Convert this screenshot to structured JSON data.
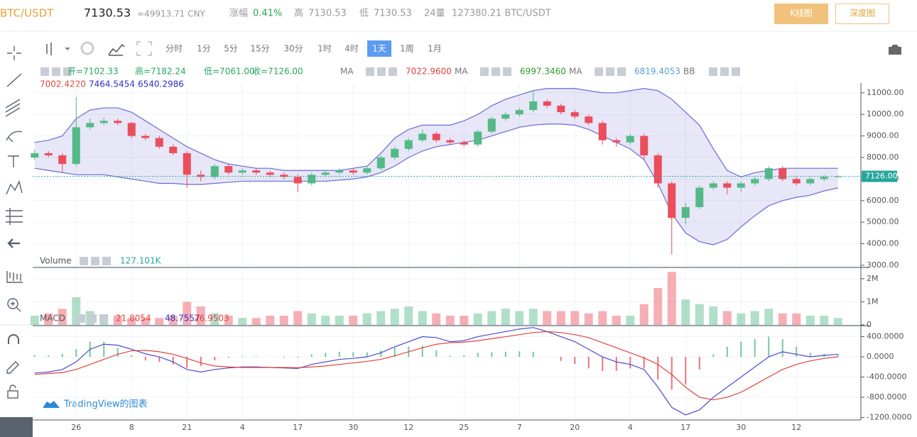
{
  "header": {
    "pair": "BTC/USDT",
    "price": "7130.53",
    "cny": "≈49913.71 CNY",
    "change_label": "涨幅",
    "change": "0.41%",
    "high_label": "高",
    "high": "7130.53",
    "low_label": "低",
    "low": "7130.53",
    "vol_label": "24量",
    "vol": "127380.21 BTC/USDT",
    "buttons": [
      "K线图",
      "深度图"
    ]
  },
  "toolbar": {
    "intervals": [
      "分时",
      "1分",
      "5分",
      "15分",
      "30分",
      "1时",
      "4时",
      "1天",
      "1周",
      "1月"
    ],
    "active": 7
  },
  "legend": {
    "ohlc": [
      "开=7102.33",
      "高=7182.24",
      "低=7061.00",
      "收=7126.00"
    ],
    "ma": [
      {
        "label": "MA",
        "value": "7022.9600"
      },
      {
        "label": "MA",
        "value": "6997.3460"
      },
      {
        "label": "MA",
        "value": "6819.4053"
      }
    ],
    "bb": {
      "label": "BB",
      "values": [
        "7002.4220",
        "7464.5454",
        "6540.2986"
      ]
    },
    "volume_label": "Volume",
    "volume_value": "127.101K",
    "macd_label": "MACD",
    "macd_values": [
      "21.8054",
      "48.7557",
      "26.9503"
    ],
    "watermark": "TradingView的图表"
  },
  "chart_data": {
    "type": "candlestick",
    "up_color": "#53b987",
    "down_color": "#eb4d5c",
    "grid": true,
    "categories": [
      null,
      null,
      null,
      "26",
      null,
      null,
      null,
      "8",
      null,
      null,
      null,
      "21",
      null,
      null,
      null,
      "4",
      null,
      null,
      null,
      "17",
      null,
      null,
      null,
      "30",
      null,
      null,
      null,
      "12",
      null,
      null,
      null,
      "25",
      null,
      null,
      null,
      "7",
      null,
      null,
      null,
      "20",
      null,
      null,
      null,
      "4",
      null,
      null,
      null,
      "17",
      null,
      null,
      null,
      "30",
      null,
      null,
      null,
      "12",
      null,
      null,
      null
    ],
    "open": [
      8000,
      8200,
      8100,
      7700,
      9400,
      9600,
      9700,
      9600,
      9000,
      8900,
      8500,
      8200,
      7200,
      7100,
      7600,
      7300,
      7400,
      7300,
      7200,
      7100,
      6800,
      7200,
      7300,
      7400,
      7300,
      7500,
      8000,
      8400,
      8800,
      9100,
      8800,
      8700,
      8600,
      9200,
      9800,
      10000,
      10200,
      10600,
      10400,
      10100,
      9900,
      9600,
      8800,
      8700,
      9000,
      8100,
      6800,
      5200,
      5700,
      6600,
      6800,
      6600,
      6800,
      7000,
      7500,
      7000,
      6800,
      7000,
      7102
    ],
    "high": [
      8350,
      8300,
      8200,
      10800,
      9800,
      9850,
      9800,
      9650,
      9100,
      9000,
      8600,
      8300,
      7400,
      7700,
      7700,
      7500,
      7500,
      7400,
      7300,
      7200,
      7300,
      7400,
      7500,
      7500,
      7600,
      8100,
      8500,
      8900,
      9300,
      9200,
      8900,
      8800,
      9300,
      9900,
      10100,
      10300,
      11100,
      10700,
      10500,
      10200,
      10000,
      9700,
      8900,
      9100,
      9100,
      8200,
      6900,
      5900,
      6700,
      6900,
      6900,
      6900,
      7100,
      7600,
      7600,
      7100,
      7100,
      7200,
      7182
    ],
    "low": [
      7900,
      8000,
      7300,
      7600,
      9300,
      9500,
      9500,
      8900,
      8800,
      8400,
      8100,
      6600,
      6900,
      7000,
      7200,
      7200,
      7200,
      7100,
      7000,
      6400,
      6700,
      7100,
      7200,
      7200,
      7200,
      7400,
      7900,
      8300,
      8700,
      8700,
      8600,
      8500,
      8500,
      9100,
      9700,
      9900,
      10100,
      10300,
      10000,
      9800,
      9500,
      8600,
      8500,
      8600,
      7900,
      6600,
      3500,
      4900,
      5600,
      6500,
      6300,
      6400,
      6700,
      6900,
      6900,
      6700,
      6700,
      6900,
      7061
    ],
    "close": [
      8200,
      8100,
      7700,
      9400,
      9600,
      9700,
      9600,
      9000,
      8900,
      8500,
      8200,
      7200,
      7100,
      7600,
      7300,
      7400,
      7300,
      7200,
      7100,
      6800,
      7200,
      7300,
      7400,
      7300,
      7500,
      8000,
      8400,
      8800,
      9100,
      8800,
      8700,
      8600,
      9200,
      9800,
      10000,
      10200,
      10600,
      10400,
      10100,
      9900,
      9600,
      8800,
      8700,
      9000,
      8100,
      6800,
      5200,
      5700,
      6600,
      6800,
      6600,
      6800,
      7000,
      7500,
      7000,
      6800,
      7000,
      7100,
      7126
    ],
    "bb_upper": {
      "color": "#6b6bd8",
      "values": [
        8700,
        8800,
        9000,
        9800,
        10200,
        10300,
        10300,
        10100,
        9700,
        9300,
        8900,
        8500,
        8200,
        7900,
        7700,
        7600,
        7500,
        7500,
        7400,
        7400,
        7400,
        7400,
        7400,
        7500,
        7600,
        8200,
        8900,
        9300,
        9500,
        9500,
        9500,
        9700,
        10000,
        10400,
        10700,
        10900,
        11100,
        11200,
        11200,
        11200,
        11100,
        11000,
        11000,
        11100,
        11200,
        11100,
        10700,
        10100,
        9500,
        8400,
        7400,
        7100,
        7300,
        7400,
        7500,
        7500,
        7500,
        7500,
        7500
      ]
    },
    "bb_lower": {
      "color": "#6b6bd8",
      "values": [
        7500,
        7400,
        7300,
        7200,
        7200,
        7200,
        7100,
        7000,
        6900,
        6800,
        6800,
        6750,
        6750,
        6800,
        6850,
        6900,
        6900,
        6900,
        6900,
        6900,
        6900,
        6900,
        6950,
        7000,
        7100,
        7300,
        7600,
        8000,
        8300,
        8500,
        8600,
        8700,
        8800,
        9000,
        9200,
        9400,
        9500,
        9550,
        9550,
        9500,
        9300,
        9000,
        8700,
        8400,
        7900,
        6800,
        5400,
        4500,
        4100,
        3950,
        4200,
        4780,
        5300,
        5760,
        6000,
        6150,
        6250,
        6450,
        6590
      ]
    },
    "ylim": [
      2934,
      11454
    ],
    "yticks": [
      {
        "value": 3000,
        "label": "3000.00"
      },
      {
        "value": 4000,
        "label": "4000.00"
      },
      {
        "value": 5000,
        "label": "5000.00"
      },
      {
        "value": 6000,
        "label": "6000.00"
      },
      {
        "value": 7000,
        "label": "7000.00"
      },
      {
        "value": 8000,
        "label": "8000.00"
      },
      {
        "value": 9000,
        "label": "9000.00"
      },
      {
        "value": 10000,
        "label": "10000.00"
      },
      {
        "value": 11000,
        "label": "11000.00"
      }
    ],
    "last": {
      "value": 7126,
      "label": "7126.00",
      "color": "#26a69a"
    },
    "volume": {
      "values": [
        400000,
        500000,
        700000,
        1200000,
        600000,
        400000,
        400000,
        300000,
        300000,
        300000,
        400000,
        1000000,
        800000,
        500000,
        400000,
        300000,
        300000,
        400000,
        400000,
        600000,
        500000,
        400000,
        400000,
        400000,
        500000,
        600000,
        700000,
        800000,
        600000,
        500000,
        400000,
        400000,
        500000,
        600000,
        700000,
        600000,
        700000,
        600000,
        600000,
        600000,
        500000,
        600000,
        400000,
        400000,
        900000,
        1600000,
        2300000,
        1100000,
        900000,
        800000,
        600000,
        500000,
        600000,
        700000,
        500000,
        500000,
        400000,
        400000,
        300000
      ],
      "ylim": [
        0,
        2460000
      ],
      "yticks": [
        0,
        {
          "value": 1000000,
          "label": "1M"
        },
        {
          "value": 2000000,
          "label": "2M"
        }
      ]
    },
    "macd": {
      "hist": [
        30,
        30,
        60,
        150,
        300,
        300,
        180,
        30,
        -70,
        -100,
        -150,
        -220,
        -180,
        -70,
        -20,
        10,
        10,
        0,
        -10,
        -15,
        50,
        80,
        100,
        90,
        90,
        130,
        180,
        200,
        220,
        130,
        20,
        30,
        80,
        90,
        100,
        110,
        100,
        0,
        -80,
        -140,
        -230,
        -280,
        -280,
        -230,
        -230,
        -450,
        -650,
        -550,
        -250,
        50,
        200,
        300,
        350,
        400,
        350,
        200,
        80,
        60,
        50
      ],
      "dif": {
        "color": "#4b4bd1",
        "values": [
          -320,
          -300,
          -250,
          -100,
          150,
          250,
          230,
          150,
          60,
          0,
          -100,
          -250,
          -300,
          -250,
          -220,
          -200,
          -200,
          -210,
          -220,
          -230,
          -150,
          -100,
          -50,
          -30,
          0,
          80,
          200,
          300,
          400,
          380,
          300,
          320,
          400,
          450,
          500,
          550,
          580,
          500,
          400,
          300,
          150,
          0,
          -100,
          -150,
          -250,
          -600,
          -1000,
          -1150,
          -1050,
          -800,
          -600,
          -400,
          -200,
          0,
          100,
          50,
          0,
          30,
          50
        ]
      },
      "dea": {
        "color": "#e0443e",
        "values": [
          -350,
          -330,
          -310,
          -250,
          -150,
          -50,
          50,
          120,
          130,
          100,
          50,
          -30,
          -120,
          -180,
          -200,
          -210,
          -210,
          -210,
          -210,
          -215,
          -200,
          -180,
          -150,
          -120,
          -90,
          -50,
          20,
          100,
          180,
          250,
          280,
          290,
          320,
          360,
          400,
          440,
          480,
          500,
          480,
          440,
          380,
          280,
          180,
          80,
          -20,
          -150,
          -350,
          -600,
          -800,
          -850,
          -800,
          -700,
          -550,
          -400,
          -250,
          -150,
          -80,
          -30,
          0
        ]
      },
      "ylim": [
        -1221,
        604
      ],
      "yticks": [
        {
          "value": 400,
          "label": "400.0000"
        },
        {
          "value": 0,
          "label": "0.0000"
        },
        {
          "value": -400,
          "label": "-400.0000"
        },
        {
          "value": -800,
          "label": "-800.0000"
        },
        {
          "value": -1200,
          "label": "-1200.0000"
        }
      ]
    }
  }
}
